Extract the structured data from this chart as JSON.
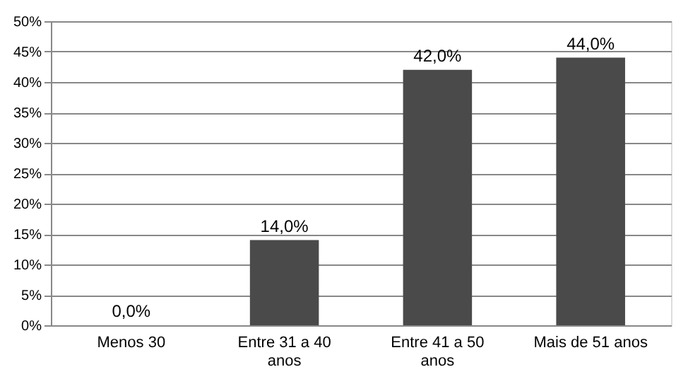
{
  "chart_data": {
    "type": "bar",
    "categories": [
      "Menos  30",
      "Entre 31 a 40 anos",
      "Entre 41 a 50 anos",
      "Mais de 51 anos"
    ],
    "values": [
      0,
      14,
      42,
      44
    ],
    "value_labels": [
      "0,0%",
      "14,0%",
      "42,0%",
      "44,0%"
    ],
    "color": "#4a4a4a",
    "ylim": [
      0,
      50
    ],
    "yticks": [
      {
        "value": 0,
        "label": "0%"
      },
      {
        "value": 5,
        "label": "5%"
      },
      {
        "value": 10,
        "label": "10%"
      },
      {
        "value": 15,
        "label": "15%"
      },
      {
        "value": 20,
        "label": "20%"
      },
      {
        "value": 25,
        "label": "25%"
      },
      {
        "value": 30,
        "label": "30%"
      },
      {
        "value": 35,
        "label": "35%"
      },
      {
        "value": 40,
        "label": "40%"
      },
      {
        "value": 45,
        "label": "45%"
      },
      {
        "value": 50,
        "label": "50%"
      }
    ],
    "grid": "y"
  }
}
